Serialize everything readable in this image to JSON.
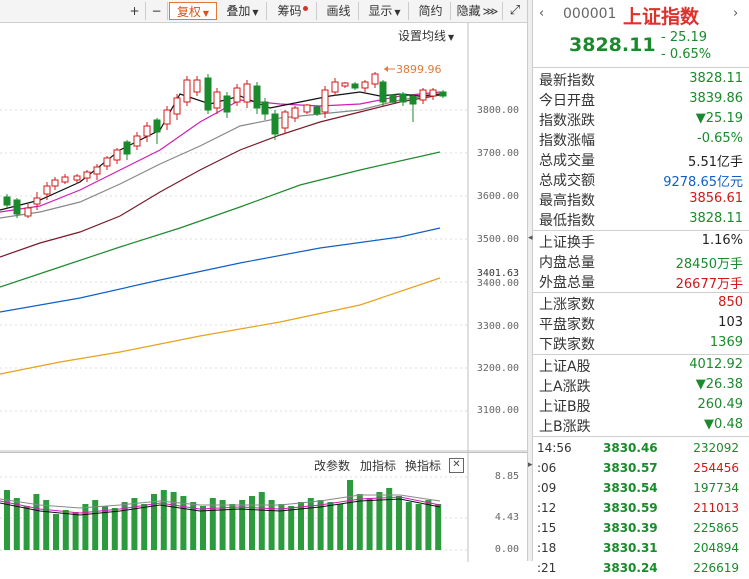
{
  "toolbar": {
    "plus": "+",
    "minus": "−",
    "fuquan": "复权",
    "diejia": "叠加",
    "chouma": "筹码",
    "huaxian": "画线",
    "xianshi": "显示",
    "jianyue": "简约",
    "yincang": "隐藏",
    "more": "⋙"
  },
  "kline": {
    "set_ma": "设置均线",
    "high_marker": "3899.96",
    "y_ticks": [
      "3800.00",
      "3700.00",
      "3600.00",
      "3500.00",
      "3401.63",
      "3400.00",
      "3300.00",
      "3200.00",
      "3100.00"
    ]
  },
  "volume": {
    "params": "改参数",
    "add_indicator": "加指标",
    "switch_indicator": "换指标",
    "y_ticks": [
      "8.85",
      "4.43",
      "0.00"
    ]
  },
  "quote": {
    "code": "000001",
    "name": "上证指数",
    "price": "3828.11",
    "change": "- 25.19",
    "change_pct": "- 0.65%",
    "rows1": [
      {
        "label": "最新指数",
        "value": "3828.11",
        "color": "#1a8a2c"
      },
      {
        "label": "今日开盘",
        "value": "3839.86",
        "color": "#1a8a2c"
      },
      {
        "label": "指数涨跌",
        "value": "▼25.19",
        "color": "#1a8a2c"
      },
      {
        "label": "指数涨幅",
        "value": "-0.65%",
        "color": "#1a8a2c"
      },
      {
        "label": "总成交量",
        "value": "5.51亿手",
        "color": "#222222"
      },
      {
        "label": "总成交额",
        "value": "9278.65亿元",
        "color": "#1060c8"
      },
      {
        "label": "最高指数",
        "value": "3856.61",
        "color": "#d01818"
      },
      {
        "label": "最低指数",
        "value": "3828.11",
        "color": "#1a8a2c"
      }
    ],
    "rows2": [
      {
        "label": "上证换手",
        "value": "1.16%",
        "color": "#222222"
      },
      {
        "label": "内盘总量",
        "value": "28450万手",
        "color": "#1a8a2c"
      },
      {
        "label": "外盘总量",
        "value": "26677万手",
        "color": "#d01818"
      }
    ],
    "rows3": [
      {
        "label": "上涨家数",
        "value": "850",
        "color": "#d01818"
      },
      {
        "label": "平盘家数",
        "value": "103",
        "color": "#222222"
      },
      {
        "label": "下跌家数",
        "value": "1369",
        "color": "#1a8a2c"
      }
    ],
    "rows4": [
      {
        "label": "上证A股",
        "value": "4012.92",
        "color": "#1a8a2c"
      },
      {
        "label": "上A涨跌",
        "value": "▼26.38",
        "color": "#1a8a2c"
      },
      {
        "label": "上证B股",
        "value": "260.49",
        "color": "#1a8a2c"
      },
      {
        "label": "上B涨跌",
        "value": "▼0.48",
        "color": "#1a8a2c"
      }
    ],
    "ticks": [
      {
        "time": "14:56",
        "price": "3830.46",
        "vol": "232092",
        "color": "#1a8a2c"
      },
      {
        "time": ":06",
        "price": "3830.57",
        "vol": "254456",
        "color": "#d01818"
      },
      {
        "time": ":09",
        "price": "3830.54",
        "vol": "197734",
        "color": "#1a8a2c"
      },
      {
        "time": ":12",
        "price": "3830.59",
        "vol": "211013",
        "color": "#d01818"
      },
      {
        "time": ":15",
        "price": "3830.39",
        "vol": "225865",
        "color": "#1a8a2c"
      },
      {
        "time": ":18",
        "price": "3830.31",
        "vol": "204894",
        "color": "#1a8a2c"
      },
      {
        "time": ":21",
        "price": "3830.24",
        "vol": "226619",
        "color": "#1a8a2c"
      }
    ]
  }
}
